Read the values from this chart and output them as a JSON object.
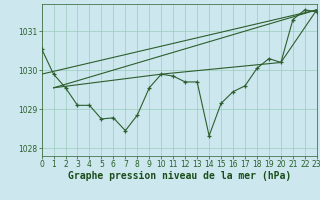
{
  "title": "Graphe pression niveau de la mer (hPa)",
  "background_color": "#cce8ee",
  "grid_color": "#99ccbb",
  "line_color": "#2d5e2d",
  "xlim": [
    0,
    23
  ],
  "ylim": [
    1027.8,
    1031.7
  ],
  "yticks": [
    1028,
    1029,
    1030,
    1031
  ],
  "xticks": [
    0,
    1,
    2,
    3,
    4,
    5,
    6,
    7,
    8,
    9,
    10,
    11,
    12,
    13,
    14,
    15,
    16,
    17,
    18,
    19,
    20,
    21,
    22,
    23
  ],
  "series_main": {
    "x": [
      0,
      1,
      2,
      3,
      4,
      5,
      6,
      7,
      8,
      9,
      10,
      11,
      12,
      13,
      14,
      15,
      16,
      17,
      18,
      19,
      20,
      21,
      22,
      23
    ],
    "y": [
      1030.55,
      1029.9,
      1029.55,
      1029.1,
      1029.1,
      1028.75,
      1028.78,
      1028.45,
      1028.85,
      1029.55,
      1029.9,
      1029.85,
      1029.7,
      1029.7,
      1028.32,
      1029.15,
      1029.45,
      1029.6,
      1030.05,
      1030.3,
      1030.2,
      1031.3,
      1031.55,
      1031.5
    ]
  },
  "series_trend1": {
    "x": [
      0,
      23
    ],
    "y": [
      1029.9,
      1031.55
    ]
  },
  "series_trend2": {
    "x": [
      1,
      23
    ],
    "y": [
      1029.55,
      1031.55
    ]
  },
  "series_trend3": {
    "x": [
      1,
      10,
      20,
      23
    ],
    "y": [
      1029.55,
      1029.9,
      1030.2,
      1031.55
    ]
  },
  "title_fontsize": 7,
  "tick_fontsize": 5.5,
  "title_color": "#1a4d1a",
  "tick_color": "#2a5e2a"
}
